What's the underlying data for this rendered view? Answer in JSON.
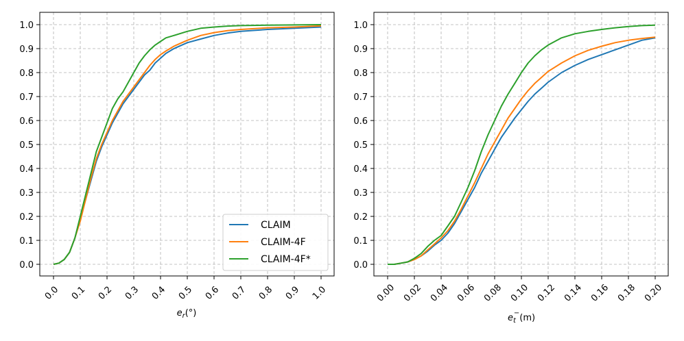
{
  "chart_data": [
    {
      "type": "line",
      "xlabel_main": "e",
      "xlabel_sub": "r",
      "xlabel_rest": "(°)",
      "xlim": [
        0,
        1.0
      ],
      "ylim": [
        0,
        1.0
      ],
      "grid": true,
      "xticks": [
        "0.0",
        "0.1",
        "0.2",
        "0.3",
        "0.4",
        "0.5",
        "0.6",
        "0.7",
        "0.8",
        "0.9",
        "1.0"
      ],
      "yticks": [
        "0.0",
        "0.1",
        "0.2",
        "0.3",
        "0.4",
        "0.5",
        "0.6",
        "0.7",
        "0.8",
        "0.9",
        "1.0"
      ],
      "legend_position": "lower-right",
      "series": [
        {
          "name": "CLAIM",
          "color": "#1f77b4",
          "x": [
            0,
            0.02,
            0.04,
            0.06,
            0.08,
            0.1,
            0.12,
            0.14,
            0.16,
            0.18,
            0.2,
            0.22,
            0.24,
            0.26,
            0.28,
            0.3,
            0.32,
            0.34,
            0.36,
            0.38,
            0.4,
            0.42,
            0.45,
            0.5,
            0.55,
            0.6,
            0.65,
            0.7,
            0.8,
            0.9,
            1.0
          ],
          "y": [
            0,
            0.005,
            0.02,
            0.05,
            0.11,
            0.19,
            0.27,
            0.35,
            0.43,
            0.49,
            0.54,
            0.59,
            0.63,
            0.67,
            0.7,
            0.73,
            0.76,
            0.79,
            0.81,
            0.84,
            0.86,
            0.88,
            0.9,
            0.925,
            0.94,
            0.955,
            0.965,
            0.972,
            0.98,
            0.985,
            0.99
          ]
        },
        {
          "name": "CLAIM-4F",
          "color": "#ff7f0e",
          "x": [
            0,
            0.02,
            0.04,
            0.06,
            0.08,
            0.1,
            0.12,
            0.14,
            0.16,
            0.18,
            0.2,
            0.22,
            0.24,
            0.26,
            0.28,
            0.3,
            0.32,
            0.34,
            0.36,
            0.38,
            0.4,
            0.42,
            0.45,
            0.5,
            0.55,
            0.6,
            0.65,
            0.7,
            0.8,
            0.9,
            1.0
          ],
          "y": [
            0,
            0.005,
            0.02,
            0.05,
            0.11,
            0.18,
            0.27,
            0.36,
            0.44,
            0.5,
            0.55,
            0.6,
            0.64,
            0.68,
            0.71,
            0.74,
            0.77,
            0.8,
            0.83,
            0.855,
            0.875,
            0.89,
            0.91,
            0.935,
            0.955,
            0.967,
            0.975,
            0.98,
            0.987,
            0.99,
            0.995
          ]
        },
        {
          "name": "CLAIM-4F*",
          "color": "#2ca02c",
          "x": [
            0,
            0.02,
            0.04,
            0.06,
            0.08,
            0.1,
            0.12,
            0.14,
            0.16,
            0.18,
            0.2,
            0.22,
            0.24,
            0.26,
            0.28,
            0.3,
            0.32,
            0.34,
            0.36,
            0.38,
            0.4,
            0.42,
            0.45,
            0.5,
            0.55,
            0.6,
            0.65,
            0.7,
            0.8,
            0.9,
            1.0
          ],
          "y": [
            0,
            0.005,
            0.02,
            0.05,
            0.11,
            0.2,
            0.29,
            0.38,
            0.47,
            0.53,
            0.59,
            0.65,
            0.69,
            0.72,
            0.76,
            0.8,
            0.84,
            0.87,
            0.895,
            0.915,
            0.93,
            0.945,
            0.955,
            0.972,
            0.985,
            0.99,
            0.994,
            0.996,
            0.998,
            0.999,
            1.0
          ]
        }
      ]
    },
    {
      "type": "line",
      "xlabel_main": "e",
      "xlabel_sub": "t",
      "xlabel_sup": "−",
      "xlabel_rest": "(m)",
      "xlim": [
        0,
        0.2
      ],
      "ylim": [
        0,
        1.0
      ],
      "grid": true,
      "xticks": [
        "0.00",
        "0.02",
        "0.04",
        "0.06",
        "0.08",
        "0.10",
        "0.12",
        "0.14",
        "0.16",
        "0.18",
        "0.20"
      ],
      "yticks": [
        "0.0",
        "0.1",
        "0.2",
        "0.3",
        "0.4",
        "0.5",
        "0.6",
        "0.7",
        "0.8",
        "0.9",
        "1.0"
      ],
      "series": [
        {
          "name": "CLAIM",
          "color": "#1f77b4",
          "x": [
            0,
            0.005,
            0.01,
            0.015,
            0.02,
            0.025,
            0.03,
            0.035,
            0.04,
            0.045,
            0.05,
            0.055,
            0.06,
            0.065,
            0.07,
            0.075,
            0.08,
            0.085,
            0.09,
            0.095,
            0.1,
            0.105,
            0.11,
            0.115,
            0.12,
            0.13,
            0.14,
            0.15,
            0.16,
            0.17,
            0.18,
            0.19,
            0.2
          ],
          "y": [
            0,
            0.0,
            0.005,
            0.01,
            0.02,
            0.035,
            0.055,
            0.08,
            0.1,
            0.13,
            0.17,
            0.22,
            0.27,
            0.32,
            0.38,
            0.43,
            0.48,
            0.53,
            0.57,
            0.61,
            0.645,
            0.68,
            0.71,
            0.735,
            0.76,
            0.8,
            0.83,
            0.855,
            0.875,
            0.895,
            0.915,
            0.935,
            0.945
          ]
        },
        {
          "name": "CLAIM-4F",
          "color": "#ff7f0e",
          "x": [
            0,
            0.005,
            0.01,
            0.015,
            0.02,
            0.025,
            0.03,
            0.035,
            0.04,
            0.045,
            0.05,
            0.055,
            0.06,
            0.065,
            0.07,
            0.075,
            0.08,
            0.085,
            0.09,
            0.095,
            0.1,
            0.105,
            0.11,
            0.115,
            0.12,
            0.13,
            0.14,
            0.15,
            0.16,
            0.17,
            0.18,
            0.19,
            0.2
          ],
          "y": [
            0,
            0.0,
            0.005,
            0.01,
            0.02,
            0.035,
            0.06,
            0.085,
            0.11,
            0.14,
            0.18,
            0.23,
            0.285,
            0.34,
            0.4,
            0.46,
            0.51,
            0.56,
            0.61,
            0.65,
            0.69,
            0.725,
            0.755,
            0.78,
            0.805,
            0.84,
            0.87,
            0.893,
            0.91,
            0.925,
            0.935,
            0.942,
            0.948
          ]
        },
        {
          "name": "CLAIM-4F*",
          "color": "#2ca02c",
          "x": [
            0,
            0.005,
            0.01,
            0.015,
            0.02,
            0.025,
            0.03,
            0.035,
            0.04,
            0.045,
            0.05,
            0.055,
            0.06,
            0.065,
            0.07,
            0.075,
            0.08,
            0.085,
            0.09,
            0.095,
            0.1,
            0.105,
            0.11,
            0.115,
            0.12,
            0.13,
            0.14,
            0.15,
            0.16,
            0.17,
            0.18,
            0.19,
            0.2
          ],
          "y": [
            0,
            0.0,
            0.005,
            0.01,
            0.025,
            0.045,
            0.075,
            0.1,
            0.12,
            0.16,
            0.2,
            0.26,
            0.32,
            0.39,
            0.47,
            0.54,
            0.6,
            0.66,
            0.71,
            0.755,
            0.8,
            0.84,
            0.87,
            0.895,
            0.915,
            0.945,
            0.962,
            0.972,
            0.98,
            0.987,
            0.992,
            0.996,
            0.998
          ]
        }
      ]
    }
  ]
}
